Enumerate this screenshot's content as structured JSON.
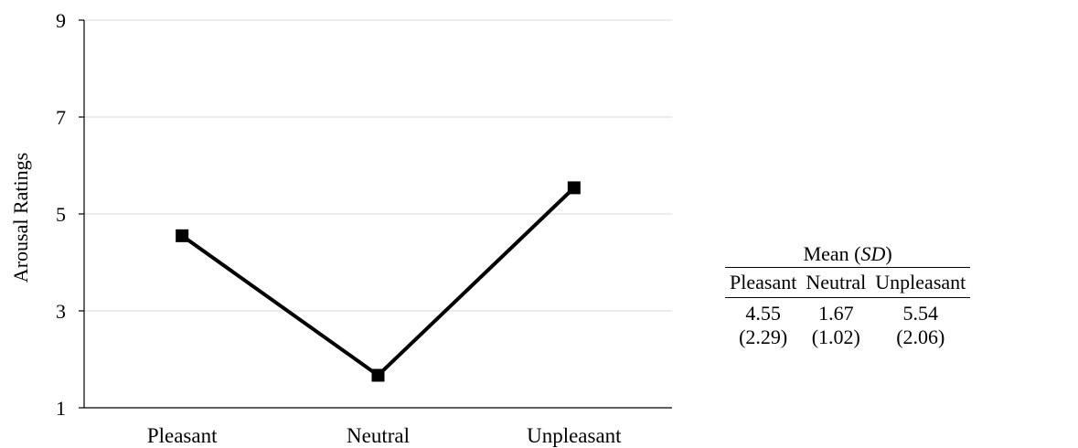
{
  "chart_data": {
    "type": "line",
    "categories": [
      "Pleasant",
      "Neutral",
      "Unpleasant"
    ],
    "series": [
      {
        "values": [
          4.55,
          1.67,
          5.54
        ],
        "color": "#000000",
        "marker": "square"
      }
    ],
    "xlabel": "",
    "ylabel": "Arousal Ratings",
    "ylim": [
      1,
      9
    ],
    "yticks": [
      1,
      3,
      5,
      7,
      9
    ],
    "grid": "horizontal",
    "gridColor": "#d9d9d9"
  },
  "table": {
    "caption_prefix": "Mean (",
    "caption_sd": "SD",
    "caption_suffix": ")",
    "headers": [
      "Pleasant",
      "Neutral",
      "Unpleasant"
    ],
    "means": [
      "4.55",
      "1.67",
      "5.54"
    ],
    "sds": [
      "(2.29)",
      "(1.02)",
      "(2.06)"
    ]
  }
}
